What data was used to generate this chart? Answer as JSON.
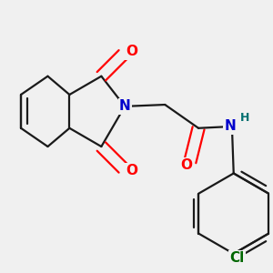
{
  "background_color": "#f0f0f0",
  "bond_color": "#1a1a1a",
  "bond_width": 1.6,
  "atom_colors": {
    "O": "#ff0000",
    "N": "#0000cc",
    "H": "#007070",
    "Cl": "#006600"
  },
  "font_size_atom": 11,
  "font_size_small": 9
}
